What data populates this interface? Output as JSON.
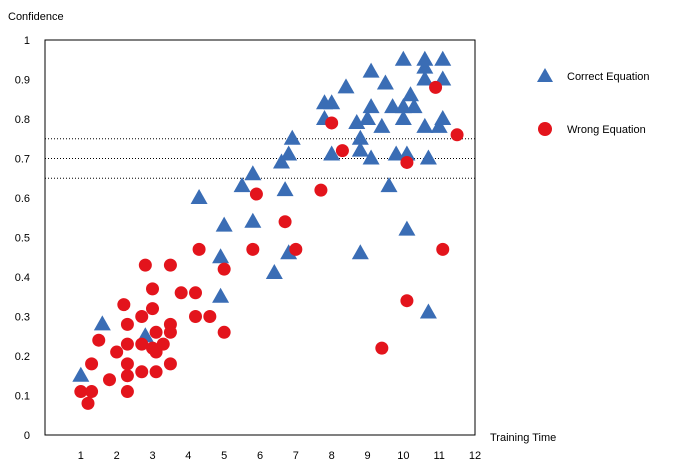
{
  "chart_data": {
    "type": "scatter",
    "xlabel": "Training Time",
    "ylabel": "Confidence",
    "xlim": [
      0,
      12
    ],
    "ylim": [
      0,
      1
    ],
    "xticks": [
      1,
      2,
      3,
      4,
      5,
      6,
      7,
      8,
      9,
      10,
      11,
      12
    ],
    "yticks": [
      {
        "v": 0,
        "label": "0"
      },
      {
        "v": 0.1,
        "label": "0.1"
      },
      {
        "v": 0.2,
        "label": "0.2"
      },
      {
        "v": 0.3,
        "label": "0.3"
      },
      {
        "v": 0.4,
        "label": "0.4"
      },
      {
        "v": 0.5,
        "label": "0.5"
      },
      {
        "v": 0.6,
        "label": "0.6"
      },
      {
        "v": 0.7,
        "label": "0.7"
      },
      {
        "v": 0.8,
        "label": "0.8"
      },
      {
        "v": 0.9,
        "label": "0.9"
      },
      {
        "v": 1,
        "label": "1"
      }
    ],
    "reference_lines": [
      0.65,
      0.7,
      0.75
    ],
    "legend_position": "right",
    "series": [
      {
        "name": "Correct Equation",
        "marker": "triangle",
        "color": "#3a6db5",
        "points": [
          [
            1.0,
            0.15
          ],
          [
            1.6,
            0.28
          ],
          [
            2.8,
            0.25
          ],
          [
            4.3,
            0.6
          ],
          [
            4.9,
            0.45
          ],
          [
            5.0,
            0.53
          ],
          [
            4.9,
            0.35
          ],
          [
            5.5,
            0.63
          ],
          [
            5.8,
            0.66
          ],
          [
            5.8,
            0.54
          ],
          [
            6.4,
            0.41
          ],
          [
            6.6,
            0.69
          ],
          [
            6.7,
            0.62
          ],
          [
            6.8,
            0.71
          ],
          [
            6.9,
            0.75
          ],
          [
            6.8,
            0.46
          ],
          [
            7.8,
            0.8
          ],
          [
            7.8,
            0.84
          ],
          [
            8.0,
            0.84
          ],
          [
            8.0,
            0.71
          ],
          [
            8.4,
            0.88
          ],
          [
            8.7,
            0.79
          ],
          [
            8.8,
            0.75
          ],
          [
            8.8,
            0.72
          ],
          [
            8.8,
            0.46
          ],
          [
            9.0,
            0.8
          ],
          [
            9.1,
            0.92
          ],
          [
            9.1,
            0.83
          ],
          [
            9.1,
            0.7
          ],
          [
            9.4,
            0.78
          ],
          [
            9.5,
            0.89
          ],
          [
            9.6,
            0.63
          ],
          [
            9.7,
            0.83
          ],
          [
            9.8,
            0.71
          ],
          [
            10.0,
            0.95
          ],
          [
            10.0,
            0.83
          ],
          [
            10.0,
            0.8
          ],
          [
            10.1,
            0.71
          ],
          [
            10.1,
            0.52
          ],
          [
            10.2,
            0.86
          ],
          [
            10.3,
            0.83
          ],
          [
            10.6,
            0.95
          ],
          [
            10.6,
            0.93
          ],
          [
            10.6,
            0.9
          ],
          [
            10.6,
            0.78
          ],
          [
            10.7,
            0.7
          ],
          [
            10.7,
            0.31
          ],
          [
            11.0,
            0.78
          ],
          [
            11.1,
            0.95
          ],
          [
            11.1,
            0.9
          ],
          [
            11.1,
            0.8
          ]
        ]
      },
      {
        "name": "Wrong Equation",
        "marker": "circle",
        "color": "#e3141c",
        "points": [
          [
            1.0,
            0.11
          ],
          [
            1.2,
            0.08
          ],
          [
            1.3,
            0.18
          ],
          [
            1.3,
            0.11
          ],
          [
            1.5,
            0.24
          ],
          [
            1.8,
            0.14
          ],
          [
            2.0,
            0.21
          ],
          [
            2.2,
            0.33
          ],
          [
            2.3,
            0.28
          ],
          [
            2.3,
            0.23
          ],
          [
            2.3,
            0.18
          ],
          [
            2.3,
            0.15
          ],
          [
            2.3,
            0.11
          ],
          [
            2.7,
            0.3
          ],
          [
            2.7,
            0.23
          ],
          [
            2.7,
            0.16
          ],
          [
            2.8,
            0.43
          ],
          [
            3.0,
            0.37
          ],
          [
            3.0,
            0.32
          ],
          [
            3.0,
            0.22
          ],
          [
            3.1,
            0.26
          ],
          [
            3.1,
            0.21
          ],
          [
            3.1,
            0.16
          ],
          [
            3.3,
            0.23
          ],
          [
            3.5,
            0.43
          ],
          [
            3.5,
            0.28
          ],
          [
            3.5,
            0.26
          ],
          [
            3.5,
            0.18
          ],
          [
            3.8,
            0.36
          ],
          [
            4.2,
            0.36
          ],
          [
            4.2,
            0.3
          ],
          [
            4.3,
            0.47
          ],
          [
            4.6,
            0.3
          ],
          [
            5.0,
            0.42
          ],
          [
            5.0,
            0.26
          ],
          [
            5.8,
            0.47
          ],
          [
            5.9,
            0.61
          ],
          [
            6.7,
            0.54
          ],
          [
            7.0,
            0.47
          ],
          [
            7.7,
            0.62
          ],
          [
            8.0,
            0.79
          ],
          [
            8.3,
            0.72
          ],
          [
            9.4,
            0.22
          ],
          [
            10.1,
            0.69
          ],
          [
            10.1,
            0.34
          ],
          [
            10.9,
            0.88
          ],
          [
            11.1,
            0.47
          ],
          [
            11.5,
            0.76
          ]
        ]
      }
    ]
  }
}
